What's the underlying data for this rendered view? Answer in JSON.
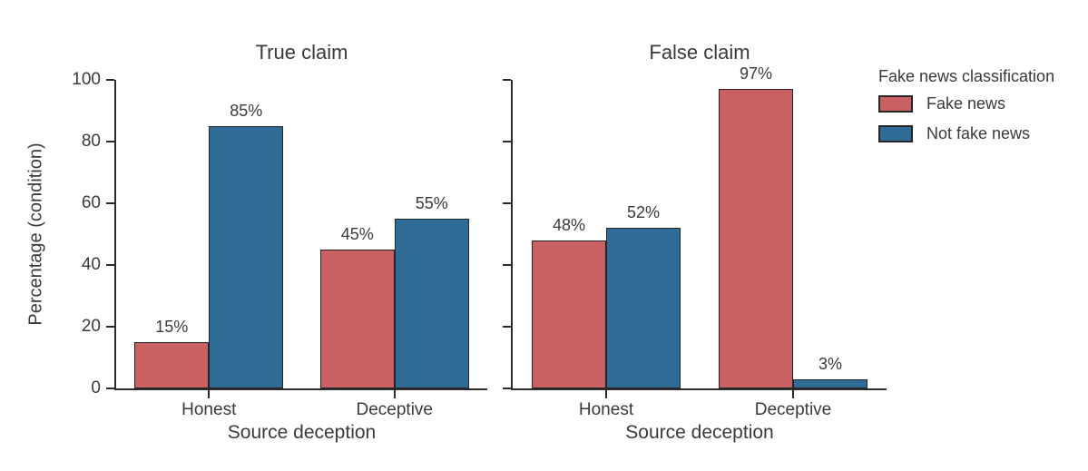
{
  "figure": {
    "background": "#ffffff",
    "y_axis_title": "Percentage (condition)"
  },
  "chart_data": [
    {
      "type": "bar",
      "title": "True claim",
      "xlabel": "Source deception",
      "ylabel": "Percentage (condition)",
      "categories": [
        "Honest",
        "Deceptive"
      ],
      "series": [
        {
          "name": "Fake news",
          "color": "#c96062",
          "values": [
            15,
            45
          ],
          "value_labels": [
            "15%",
            "45%"
          ]
        },
        {
          "name": "Not fake news",
          "color": "#2e6c96",
          "values": [
            85,
            55
          ],
          "value_labels": [
            "85%",
            "55%"
          ]
        }
      ],
      "ylim": [
        0,
        100
      ],
      "yticks": [
        0,
        20,
        40,
        60,
        80,
        100
      ],
      "show_ytick_labels": true,
      "grid": false
    },
    {
      "type": "bar",
      "title": "False claim",
      "xlabel": "Source deception",
      "ylabel": "",
      "categories": [
        "Honest",
        "Deceptive"
      ],
      "series": [
        {
          "name": "Fake news",
          "color": "#c96062",
          "values": [
            48,
            97
          ],
          "value_labels": [
            "48%",
            "97%"
          ]
        },
        {
          "name": "Not fake news",
          "color": "#2e6c96",
          "values": [
            52,
            3
          ],
          "value_labels": [
            "52%",
            "3%"
          ]
        }
      ],
      "ylim": [
        0,
        100
      ],
      "yticks": [
        0,
        20,
        40,
        60,
        80,
        100
      ],
      "show_ytick_labels": false,
      "grid": false
    }
  ],
  "legend": {
    "title": "Fake news classification",
    "position": "top-right",
    "items": [
      {
        "label": "Fake news",
        "color": "#c96062"
      },
      {
        "label": "Not fake news",
        "color": "#2e6c96"
      }
    ]
  },
  "style": {
    "axis_color": "#2b2b2b",
    "bar_edge_color": "#252528",
    "text_color": "#3a3a3a"
  }
}
